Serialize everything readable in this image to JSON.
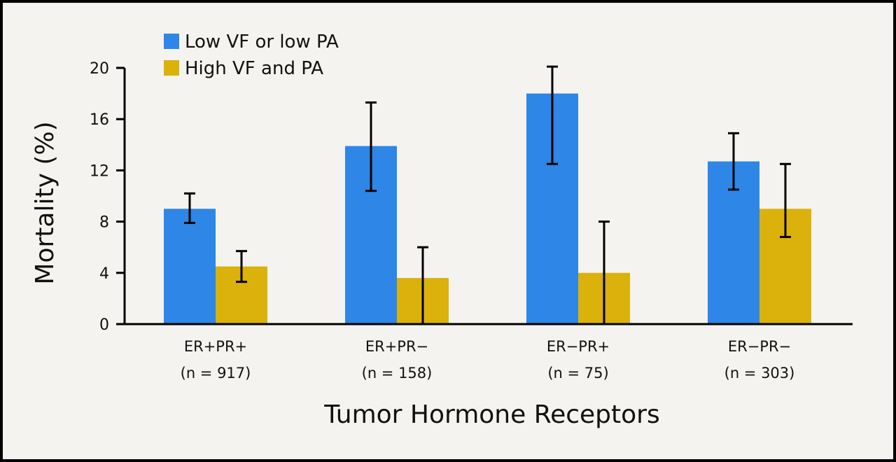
{
  "chart_data": {
    "type": "bar",
    "title": "",
    "xlabel": "Tumor Hormone Receptors",
    "ylabel": "Mortality (%)",
    "ylim": [
      0,
      20
    ],
    "yticks": [
      0,
      4,
      8,
      12,
      16,
      20
    ],
    "grid": false,
    "legend_position": "top-left",
    "categories": [
      {
        "line1": "ER+PR+",
        "line2": "(n = 917)"
      },
      {
        "line1": "ER+PR−",
        "line2": "(n = 158)"
      },
      {
        "line1": "ER−PR+",
        "line2": "(n = 75)"
      },
      {
        "line1": "ER−PR−",
        "line2": "(n = 303)"
      }
    ],
    "series": [
      {
        "name": "Low VF or low PA",
        "color": "#2e86e6",
        "values": [
          9.0,
          13.9,
          18.0,
          12.7
        ],
        "error_low": [
          7.9,
          10.4,
          12.5,
          10.5
        ],
        "error_high": [
          10.2,
          17.3,
          20.1,
          14.9
        ]
      },
      {
        "name": "High VF and PA",
        "color": "#dbb10c",
        "values": [
          4.5,
          3.6,
          4.0,
          9.0
        ],
        "error_low": [
          3.3,
          0.0,
          0.0,
          6.8
        ],
        "error_high": [
          5.7,
          6.0,
          8.0,
          12.5
        ]
      }
    ]
  }
}
